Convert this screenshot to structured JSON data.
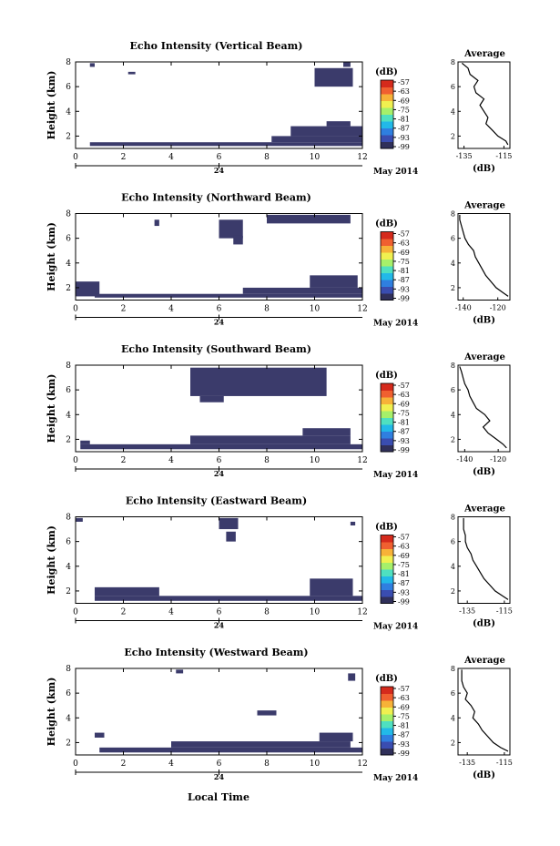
{
  "figure": {
    "date_label": "May 2014",
    "day_label": "24",
    "xlabel": "Local Time",
    "colorbar_unit": "(dB)",
    "colorbar_ticks": [
      "-57",
      "-63",
      "-69",
      "-75",
      "-81",
      "-87",
      "-93",
      "-99"
    ],
    "colorscale": [
      "#30305a",
      "#3a4db0",
      "#2f7fe0",
      "#22b9e8",
      "#4fe0c0",
      "#a6f06a",
      "#f0f050",
      "#f7b238",
      "#f06030",
      "#d52a1c"
    ],
    "data_color": "#3b3b6b"
  },
  "chart_data": [
    {
      "type": "heatmap",
      "title": "Echo Intensity (Vertical Beam)",
      "ylabel": "Height (km)",
      "xticks": [
        "0",
        "2",
        "4",
        "6",
        "8",
        "10",
        "12"
      ],
      "yticks": [
        "2",
        "4",
        "6",
        "8"
      ],
      "xlim": [
        0,
        12
      ],
      "ylim": [
        1,
        8
      ],
      "echo_regions_hours_km": [
        [
          0.6,
          12,
          1.2,
          1.5
        ],
        [
          8.2,
          12,
          1.5,
          2.0
        ],
        [
          9.0,
          12,
          2.0,
          2.8
        ],
        [
          10.5,
          11.5,
          2.8,
          3.2
        ],
        [
          10.0,
          11.6,
          6.0,
          7.5
        ],
        [
          11.2,
          11.5,
          7.6,
          8.0
        ],
        [
          2.2,
          2.5,
          7.0,
          7.2
        ],
        [
          0.6,
          0.8,
          7.6,
          7.9
        ]
      ],
      "avg": {
        "title": "Average",
        "xlabel": "(dB)",
        "xticks": [
          "-135",
          "-115"
        ],
        "xlim": [
          -138,
          -112
        ],
        "yticks": [
          "2",
          "4",
          "6",
          "8"
        ],
        "ylim": [
          1,
          8
        ],
        "profile": [
          [
            -113,
            1.3
          ],
          [
            -114,
            1.6
          ],
          [
            -118,
            2.0
          ],
          [
            -121,
            2.5
          ],
          [
            -124,
            3.0
          ],
          [
            -123,
            3.5
          ],
          [
            -125,
            4.0
          ],
          [
            -127,
            4.5
          ],
          [
            -125,
            5.0
          ],
          [
            -129,
            5.5
          ],
          [
            -130,
            6.0
          ],
          [
            -128,
            6.5
          ],
          [
            -132,
            7.0
          ],
          [
            -133,
            7.5
          ],
          [
            -136,
            7.9
          ]
        ]
      }
    },
    {
      "type": "heatmap",
      "title": "Echo Intensity (Northward Beam)",
      "ylabel": "Height (km)",
      "xticks": [
        "0",
        "2",
        "4",
        "6",
        "8",
        "10",
        "12"
      ],
      "yticks": [
        "2",
        "4",
        "6",
        "8"
      ],
      "xlim": [
        0,
        12
      ],
      "ylim": [
        1,
        8
      ],
      "echo_regions_hours_km": [
        [
          0.0,
          1.0,
          1.3,
          2.5
        ],
        [
          0.8,
          12,
          1.2,
          1.5
        ],
        [
          7.0,
          12,
          1.5,
          2.0
        ],
        [
          9.8,
          11.8,
          2.0,
          3.0
        ],
        [
          6.0,
          7.0,
          6.0,
          7.5
        ],
        [
          8.0,
          11.5,
          7.2,
          7.9
        ],
        [
          6.6,
          7.0,
          5.5,
          6.2
        ],
        [
          3.3,
          3.5,
          7.0,
          7.5
        ]
      ],
      "avg": {
        "title": "Average",
        "xlabel": "(dB)",
        "xticks": [
          "-140",
          "-120"
        ],
        "xlim": [
          -143,
          -113
        ],
        "yticks": [
          "2",
          "4",
          "6",
          "8"
        ],
        "ylim": [
          1,
          8
        ],
        "profile": [
          [
            -114,
            1.3
          ],
          [
            -117,
            1.6
          ],
          [
            -121,
            2.0
          ],
          [
            -124,
            2.5
          ],
          [
            -127,
            3.0
          ],
          [
            -129,
            3.5
          ],
          [
            -131,
            4.0
          ],
          [
            -133,
            4.5
          ],
          [
            -134,
            5.0
          ],
          [
            -137,
            5.5
          ],
          [
            -139,
            6.0
          ],
          [
            -140,
            6.5
          ],
          [
            -141,
            7.0
          ],
          [
            -142,
            7.5
          ],
          [
            -142,
            7.9
          ]
        ]
      }
    },
    {
      "type": "heatmap",
      "title": "Echo Intensity (Southward Beam)",
      "ylabel": "Height (km)",
      "xticks": [
        "0",
        "2",
        "4",
        "6",
        "8",
        "10",
        "12"
      ],
      "yticks": [
        "2",
        "4",
        "6",
        "8"
      ],
      "xlim": [
        0,
        12
      ],
      "ylim": [
        1,
        8
      ],
      "echo_regions_hours_km": [
        [
          0.2,
          12,
          1.2,
          1.6
        ],
        [
          4.8,
          11.5,
          1.6,
          2.3
        ],
        [
          9.5,
          11.5,
          2.3,
          2.9
        ],
        [
          4.8,
          10.5,
          5.5,
          7.8
        ],
        [
          5.2,
          6.2,
          5.0,
          5.5
        ],
        [
          0.2,
          0.6,
          1.6,
          1.9
        ]
      ],
      "avg": {
        "title": "Average",
        "xlabel": "(dB)",
        "xticks": [
          "-140",
          "-120"
        ],
        "xlim": [
          -144,
          -113
        ],
        "yticks": [
          "2",
          "4",
          "6",
          "8"
        ],
        "ylim": [
          1,
          8
        ],
        "profile": [
          [
            -115,
            1.3
          ],
          [
            -117,
            1.6
          ],
          [
            -121,
            2.0
          ],
          [
            -126,
            2.5
          ],
          [
            -129,
            3.0
          ],
          [
            -125,
            3.5
          ],
          [
            -128,
            4.0
          ],
          [
            -133,
            4.5
          ],
          [
            -135,
            5.0
          ],
          [
            -137,
            5.5
          ],
          [
            -138,
            6.0
          ],
          [
            -140,
            6.5
          ],
          [
            -141,
            7.0
          ],
          [
            -142,
            7.5
          ],
          [
            -143,
            7.9
          ]
        ]
      }
    },
    {
      "type": "heatmap",
      "title": "Echo Intensity (Eastward Beam)",
      "ylabel": "Height (km)",
      "xticks": [
        "0",
        "2",
        "4",
        "6",
        "8",
        "10",
        "12"
      ],
      "yticks": [
        "2",
        "4",
        "6",
        "8"
      ],
      "xlim": [
        0,
        12
      ],
      "ylim": [
        1,
        8
      ],
      "echo_regions_hours_km": [
        [
          0.8,
          12,
          1.2,
          1.6
        ],
        [
          0.8,
          3.5,
          1.6,
          2.3
        ],
        [
          9.8,
          11.6,
          1.6,
          3.0
        ],
        [
          6.0,
          6.8,
          7.0,
          7.9
        ],
        [
          6.3,
          6.7,
          6.0,
          6.8
        ],
        [
          11.5,
          11.7,
          7.3,
          7.6
        ],
        [
          0.0,
          0.3,
          7.6,
          7.9
        ]
      ],
      "avg": {
        "title": "Average",
        "xlabel": "(dB)",
        "xticks": [
          "-135",
          "-115"
        ],
        "xlim": [
          -140,
          -112
        ],
        "yticks": [
          "2",
          "4",
          "6",
          "8"
        ],
        "ylim": [
          1,
          8
        ],
        "profile": [
          [
            -113,
            1.3
          ],
          [
            -116,
            1.6
          ],
          [
            -120,
            2.0
          ],
          [
            -123,
            2.5
          ],
          [
            -126,
            3.0
          ],
          [
            -128,
            3.5
          ],
          [
            -130,
            4.0
          ],
          [
            -132,
            4.5
          ],
          [
            -133,
            5.0
          ],
          [
            -135,
            5.5
          ],
          [
            -136,
            6.0
          ],
          [
            -136,
            6.5
          ],
          [
            -137,
            7.0
          ],
          [
            -137,
            7.5
          ],
          [
            -137,
            7.9
          ]
        ]
      }
    },
    {
      "type": "heatmap",
      "title": "Echo Intensity (Westward Beam)",
      "ylabel": "Height (km)",
      "xticks": [
        "0",
        "2",
        "4",
        "6",
        "8",
        "10",
        "12"
      ],
      "yticks": [
        "2",
        "4",
        "6",
        "8"
      ],
      "xlim": [
        0,
        12
      ],
      "ylim": [
        1,
        8
      ],
      "echo_regions_hours_km": [
        [
          1.0,
          12,
          1.2,
          1.6
        ],
        [
          4.0,
          11.5,
          1.6,
          2.1
        ],
        [
          10.2,
          11.6,
          2.1,
          2.8
        ],
        [
          7.6,
          8.4,
          4.2,
          4.6
        ],
        [
          0.8,
          1.2,
          2.4,
          2.8
        ],
        [
          4.2,
          4.5,
          7.6,
          7.9
        ],
        [
          11.4,
          11.7,
          7.0,
          7.6
        ]
      ],
      "avg": {
        "title": "Average",
        "xlabel": "(dB)",
        "xticks": [
          "-135",
          "-115"
        ],
        "xlim": [
          -140,
          -112
        ],
        "yticks": [
          "2",
          "4",
          "6",
          "8"
        ],
        "ylim": [
          1,
          8
        ],
        "profile": [
          [
            -113,
            1.3
          ],
          [
            -117,
            1.6
          ],
          [
            -121,
            2.0
          ],
          [
            -124,
            2.5
          ],
          [
            -127,
            3.0
          ],
          [
            -129,
            3.5
          ],
          [
            -132,
            4.0
          ],
          [
            -131,
            4.5
          ],
          [
            -133,
            5.0
          ],
          [
            -136,
            5.5
          ],
          [
            -135,
            6.0
          ],
          [
            -137,
            6.5
          ],
          [
            -138,
            7.0
          ],
          [
            -138,
            7.5
          ],
          [
            -138,
            7.9
          ]
        ]
      }
    }
  ]
}
